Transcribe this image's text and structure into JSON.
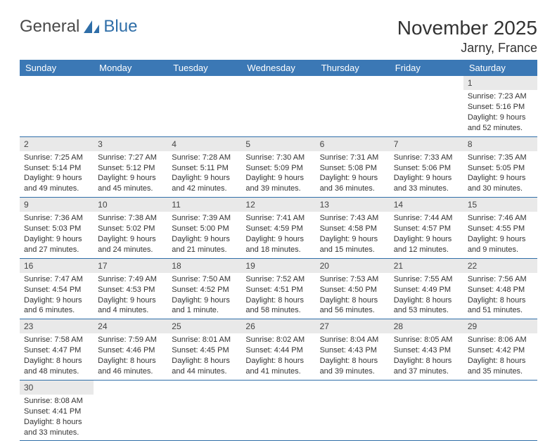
{
  "logo": {
    "text1": "General",
    "text2": "Blue"
  },
  "title": "November 2025",
  "location": "Jarny, France",
  "colors": {
    "header_bg": "#3b78b5",
    "header_text": "#ffffff",
    "daynum_bg": "#e9e9e9",
    "row_border": "#2f6ea8",
    "text": "#333333",
    "logo_gray": "#4a4a4a",
    "logo_blue": "#2f6ea8"
  },
  "day_headers": [
    "Sunday",
    "Monday",
    "Tuesday",
    "Wednesday",
    "Thursday",
    "Friday",
    "Saturday"
  ],
  "weeks": [
    [
      null,
      null,
      null,
      null,
      null,
      null,
      {
        "n": "1",
        "sunrise": "Sunrise: 7:23 AM",
        "sunset": "Sunset: 5:16 PM",
        "daylight": "Daylight: 9 hours and 52 minutes."
      }
    ],
    [
      {
        "n": "2",
        "sunrise": "Sunrise: 7:25 AM",
        "sunset": "Sunset: 5:14 PM",
        "daylight": "Daylight: 9 hours and 49 minutes."
      },
      {
        "n": "3",
        "sunrise": "Sunrise: 7:27 AM",
        "sunset": "Sunset: 5:12 PM",
        "daylight": "Daylight: 9 hours and 45 minutes."
      },
      {
        "n": "4",
        "sunrise": "Sunrise: 7:28 AM",
        "sunset": "Sunset: 5:11 PM",
        "daylight": "Daylight: 9 hours and 42 minutes."
      },
      {
        "n": "5",
        "sunrise": "Sunrise: 7:30 AM",
        "sunset": "Sunset: 5:09 PM",
        "daylight": "Daylight: 9 hours and 39 minutes."
      },
      {
        "n": "6",
        "sunrise": "Sunrise: 7:31 AM",
        "sunset": "Sunset: 5:08 PM",
        "daylight": "Daylight: 9 hours and 36 minutes."
      },
      {
        "n": "7",
        "sunrise": "Sunrise: 7:33 AM",
        "sunset": "Sunset: 5:06 PM",
        "daylight": "Daylight: 9 hours and 33 minutes."
      },
      {
        "n": "8",
        "sunrise": "Sunrise: 7:35 AM",
        "sunset": "Sunset: 5:05 PM",
        "daylight": "Daylight: 9 hours and 30 minutes."
      }
    ],
    [
      {
        "n": "9",
        "sunrise": "Sunrise: 7:36 AM",
        "sunset": "Sunset: 5:03 PM",
        "daylight": "Daylight: 9 hours and 27 minutes."
      },
      {
        "n": "10",
        "sunrise": "Sunrise: 7:38 AM",
        "sunset": "Sunset: 5:02 PM",
        "daylight": "Daylight: 9 hours and 24 minutes."
      },
      {
        "n": "11",
        "sunrise": "Sunrise: 7:39 AM",
        "sunset": "Sunset: 5:00 PM",
        "daylight": "Daylight: 9 hours and 21 minutes."
      },
      {
        "n": "12",
        "sunrise": "Sunrise: 7:41 AM",
        "sunset": "Sunset: 4:59 PM",
        "daylight": "Daylight: 9 hours and 18 minutes."
      },
      {
        "n": "13",
        "sunrise": "Sunrise: 7:43 AM",
        "sunset": "Sunset: 4:58 PM",
        "daylight": "Daylight: 9 hours and 15 minutes."
      },
      {
        "n": "14",
        "sunrise": "Sunrise: 7:44 AM",
        "sunset": "Sunset: 4:57 PM",
        "daylight": "Daylight: 9 hours and 12 minutes."
      },
      {
        "n": "15",
        "sunrise": "Sunrise: 7:46 AM",
        "sunset": "Sunset: 4:55 PM",
        "daylight": "Daylight: 9 hours and 9 minutes."
      }
    ],
    [
      {
        "n": "16",
        "sunrise": "Sunrise: 7:47 AM",
        "sunset": "Sunset: 4:54 PM",
        "daylight": "Daylight: 9 hours and 6 minutes."
      },
      {
        "n": "17",
        "sunrise": "Sunrise: 7:49 AM",
        "sunset": "Sunset: 4:53 PM",
        "daylight": "Daylight: 9 hours and 4 minutes."
      },
      {
        "n": "18",
        "sunrise": "Sunrise: 7:50 AM",
        "sunset": "Sunset: 4:52 PM",
        "daylight": "Daylight: 9 hours and 1 minute."
      },
      {
        "n": "19",
        "sunrise": "Sunrise: 7:52 AM",
        "sunset": "Sunset: 4:51 PM",
        "daylight": "Daylight: 8 hours and 58 minutes."
      },
      {
        "n": "20",
        "sunrise": "Sunrise: 7:53 AM",
        "sunset": "Sunset: 4:50 PM",
        "daylight": "Daylight: 8 hours and 56 minutes."
      },
      {
        "n": "21",
        "sunrise": "Sunrise: 7:55 AM",
        "sunset": "Sunset: 4:49 PM",
        "daylight": "Daylight: 8 hours and 53 minutes."
      },
      {
        "n": "22",
        "sunrise": "Sunrise: 7:56 AM",
        "sunset": "Sunset: 4:48 PM",
        "daylight": "Daylight: 8 hours and 51 minutes."
      }
    ],
    [
      {
        "n": "23",
        "sunrise": "Sunrise: 7:58 AM",
        "sunset": "Sunset: 4:47 PM",
        "daylight": "Daylight: 8 hours and 48 minutes."
      },
      {
        "n": "24",
        "sunrise": "Sunrise: 7:59 AM",
        "sunset": "Sunset: 4:46 PM",
        "daylight": "Daylight: 8 hours and 46 minutes."
      },
      {
        "n": "25",
        "sunrise": "Sunrise: 8:01 AM",
        "sunset": "Sunset: 4:45 PM",
        "daylight": "Daylight: 8 hours and 44 minutes."
      },
      {
        "n": "26",
        "sunrise": "Sunrise: 8:02 AM",
        "sunset": "Sunset: 4:44 PM",
        "daylight": "Daylight: 8 hours and 41 minutes."
      },
      {
        "n": "27",
        "sunrise": "Sunrise: 8:04 AM",
        "sunset": "Sunset: 4:43 PM",
        "daylight": "Daylight: 8 hours and 39 minutes."
      },
      {
        "n": "28",
        "sunrise": "Sunrise: 8:05 AM",
        "sunset": "Sunset: 4:43 PM",
        "daylight": "Daylight: 8 hours and 37 minutes."
      },
      {
        "n": "29",
        "sunrise": "Sunrise: 8:06 AM",
        "sunset": "Sunset: 4:42 PM",
        "daylight": "Daylight: 8 hours and 35 minutes."
      }
    ],
    [
      {
        "n": "30",
        "sunrise": "Sunrise: 8:08 AM",
        "sunset": "Sunset: 4:41 PM",
        "daylight": "Daylight: 8 hours and 33 minutes."
      },
      null,
      null,
      null,
      null,
      null,
      null
    ]
  ]
}
